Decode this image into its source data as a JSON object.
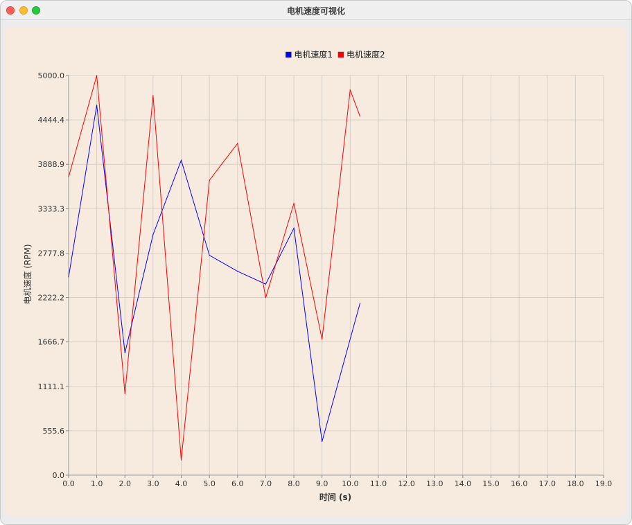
{
  "window": {
    "title": "电机速度可视化"
  },
  "colors": {
    "plot_background": "#f7ebdf",
    "grid": "#d6d0c9",
    "series1": "#0000ff",
    "series2": "#ff0000"
  },
  "chart_data": {
    "type": "line",
    "title": "",
    "xlabel": "时间 (s)",
    "ylabel": "电机速度 (RPM)",
    "xlim": [
      0,
      19
    ],
    "ylim": [
      0,
      5000
    ],
    "x_ticks": [
      "0.0",
      "1.0",
      "2.0",
      "3.0",
      "4.0",
      "5.0",
      "6.0",
      "7.0",
      "8.0",
      "9.0",
      "10.0",
      "11.0",
      "12.0",
      "13.0",
      "14.0",
      "15.0",
      "16.0",
      "17.0",
      "18.0",
      "19.0"
    ],
    "y_ticks": [
      "0.0",
      "555.6",
      "1111.1",
      "1666.7",
      "2222.2",
      "2777.8",
      "3333.3",
      "3888.9",
      "4444.4",
      "5000.0"
    ],
    "grid": true,
    "legend_position": "top-center",
    "series": [
      {
        "name": "电机速度1",
        "color": "#0000ff",
        "points": [
          [
            0.0,
            2480
          ],
          [
            1.0,
            4630
          ],
          [
            2.0,
            1530
          ],
          [
            3.0,
            3010
          ],
          [
            4.0,
            3940
          ],
          [
            5.0,
            2750
          ],
          [
            6.0,
            2550
          ],
          [
            7.0,
            2390
          ],
          [
            8.0,
            3090
          ],
          [
            9.0,
            420
          ],
          [
            10.35,
            2150
          ]
        ]
      },
      {
        "name": "电机速度2",
        "color": "#ff0000",
        "points": [
          [
            0.0,
            3730
          ],
          [
            1.0,
            5000
          ],
          [
            2.0,
            1020
          ],
          [
            3.0,
            4750
          ],
          [
            4.0,
            190
          ],
          [
            5.0,
            3690
          ],
          [
            6.0,
            4150
          ],
          [
            7.0,
            2220
          ],
          [
            8.0,
            3400
          ],
          [
            9.0,
            1700
          ],
          [
            10.0,
            4820
          ],
          [
            10.35,
            4490
          ]
        ]
      }
    ]
  }
}
